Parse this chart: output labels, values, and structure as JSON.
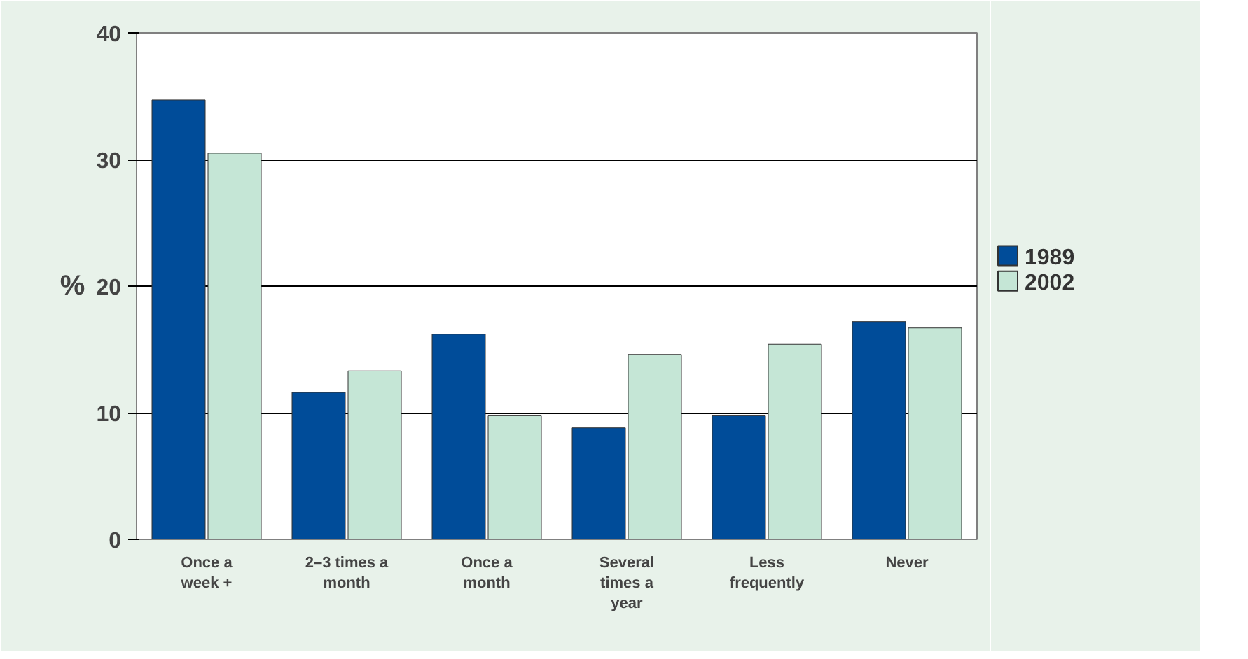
{
  "chart_data": {
    "type": "bar",
    "ylabel": "%",
    "categories": [
      "Once a\nweek +",
      "2–3 times a\nmonth",
      "Once a\nmonth",
      "Several\ntimes a\nyear",
      "Less\nfrequently",
      "Never"
    ],
    "series": [
      {
        "name": "1989",
        "color": "#004c99",
        "values": [
          34.7,
          11.6,
          16.2,
          8.8,
          9.8,
          17.2
        ]
      },
      {
        "name": "2002",
        "color": "#c5e6d6",
        "values": [
          30.5,
          13.3,
          9.8,
          14.6,
          15.4,
          16.7
        ]
      }
    ],
    "ylim": [
      0,
      40
    ],
    "yticks": [
      0,
      10,
      20,
      30,
      40
    ],
    "grid": "y",
    "legend": "right"
  }
}
